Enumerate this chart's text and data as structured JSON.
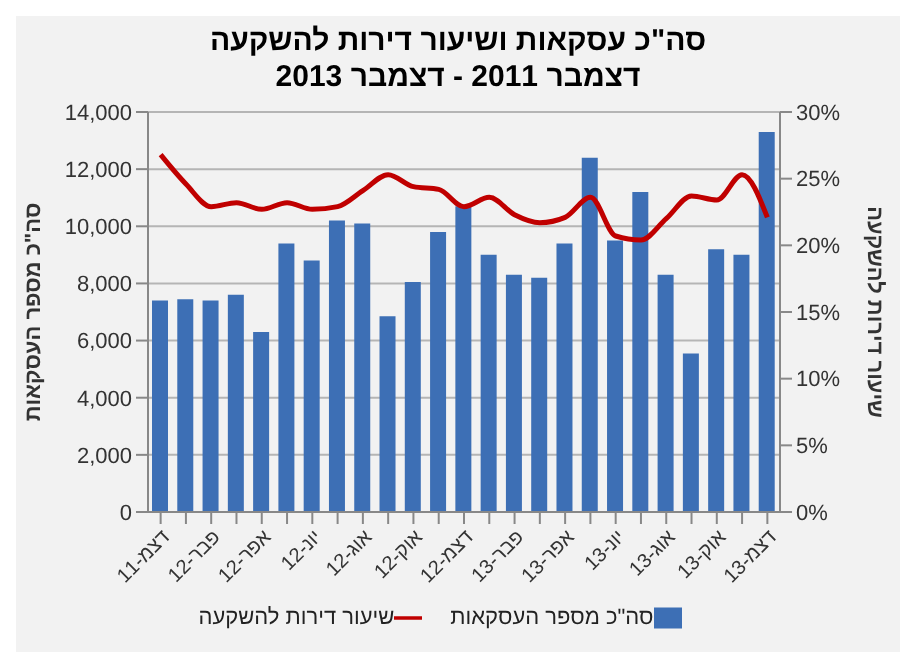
{
  "chart_data": {
    "type": "bar",
    "title": "סה\"כ עסקאות ושיעור דירות להשקעה",
    "subtitle": "דצמבר 2011 - דצמבר 2013",
    "categories": [
      "דצמ-11",
      null,
      "פבר-12",
      null,
      "אפר-12",
      null,
      "יונ-12",
      null,
      "אוג-12",
      null,
      "אוק-12",
      null,
      "דצמ-12",
      null,
      "פבר-13",
      null,
      "אפר-13",
      null,
      "יונ-13",
      null,
      "אוג-13",
      null,
      "אוק-13",
      null,
      "דצמ-13"
    ],
    "series": [
      {
        "name": "סה\"כ מספר העסקאות",
        "color": "#3d6fb5",
        "values": [
          7400,
          7450,
          7400,
          7600,
          6300,
          9400,
          8800,
          10200,
          10100,
          6850,
          8050,
          9800,
          10700,
          9000,
          8300,
          8200,
          9400,
          12400,
          9500,
          11200,
          8300,
          5550,
          9200,
          9000,
          13300
        ]
      },
      {
        "name": "שיעור דירות להשקעה",
        "type": "line",
        "axis": "y2",
        "color": "#c00000",
        "values": [
          26.8,
          24.6,
          22.9,
          23.2,
          22.7,
          23.2,
          22.7,
          22.9,
          24.1,
          25.3,
          24.4,
          24.2,
          22.9,
          23.6,
          22.3,
          21.7,
          22.1,
          23.6,
          20.7,
          20.4,
          22.0,
          23.7,
          23.4,
          25.3,
          22.1
        ]
      }
    ],
    "ylabel": "סה\"כ מספר העסקאות",
    "y2label": "שיעור דירות להשקעה",
    "ylim": [
      0,
      14000
    ],
    "yticks": [
      {
        "value": 0,
        "label": "0"
      },
      {
        "value": 2000,
        "label": "2,000"
      },
      {
        "value": 4000,
        "label": "4,000"
      },
      {
        "value": 6000,
        "label": "6,000"
      },
      {
        "value": 8000,
        "label": "8,000"
      },
      {
        "value": 10000,
        "label": "10,000"
      },
      {
        "value": 12000,
        "label": "12,000"
      },
      {
        "value": 14000,
        "label": "14,000"
      }
    ],
    "y2lim": [
      0,
      30
    ],
    "y2ticks": [
      {
        "value": 0,
        "label": "0%"
      },
      {
        "value": 5,
        "label": "5%"
      },
      {
        "value": 10,
        "label": "10%"
      },
      {
        "value": 15,
        "label": "15%"
      },
      {
        "value": 20,
        "label": "20%"
      },
      {
        "value": 25,
        "label": "25%"
      },
      {
        "value": 30,
        "label": "30%"
      }
    ],
    "grid": "y",
    "legend": "bottom",
    "marker": "none",
    "line_style": "solid"
  }
}
